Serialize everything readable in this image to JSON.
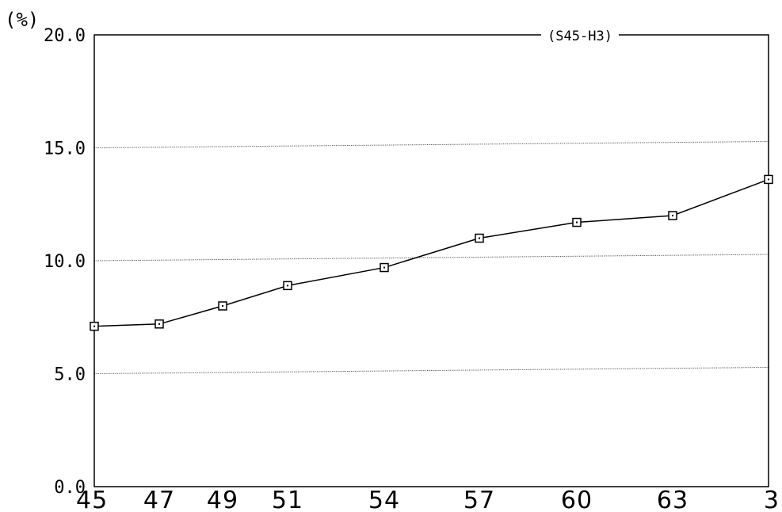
{
  "chart_data": {
    "type": "line",
    "y_unit_label": "(%)",
    "legend_label": "(S45-H3)",
    "categories": [
      "45",
      "47",
      "49",
      "51",
      "54",
      "57",
      "60",
      "63",
      "3"
    ],
    "series": [
      {
        "values": [
          7.1,
          7.2,
          8.0,
          8.9,
          9.7,
          11.0,
          11.7,
          12.0,
          13.6
        ],
        "marker": "square",
        "color": "#000000"
      }
    ],
    "y_ticks": [
      "0.0",
      "5.0",
      "10.0",
      "15.0",
      "20.0"
    ],
    "ylim": [
      0,
      20
    ],
    "grid": "horizontal-dotted",
    "legend_position": "top-right"
  }
}
